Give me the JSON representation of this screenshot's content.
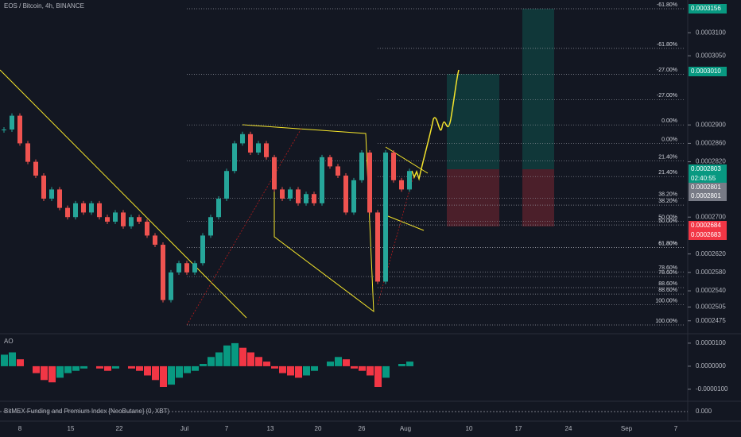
{
  "header": {
    "title": "EOS / Bitcoin, 4h, BINANCE"
  },
  "chart_data": {
    "type": "candlestick",
    "up_color": "#26a69a",
    "down_color": "#ef5350",
    "values": [
      0.000289,
      0.000292,
      0.000286,
      0.000282,
      0.000279,
      0.000274,
      0.000276,
      0.000272,
      0.00027,
      0.000273,
      0.000271,
      0.000273,
      0.00027,
      0.000269,
      0.000271,
      0.000268,
      0.00027,
      0.000269,
      0.000266,
      0.000264,
      0.000252,
      0.000258,
      0.00026,
      0.000258,
      0.00026,
      0.000266,
      0.00027,
      0.000274,
      0.00028,
      0.000286,
      0.000288,
      0.000284,
      0.000286,
      0.000283,
      0.000276,
      0.000274,
      0.000276,
      0.000273,
      0.000275,
      0.000273,
      0.000283,
      0.000281,
      0.000279,
      0.000271,
      0.000278,
      0.000284,
      0.000271,
      0.000256,
      0.000284,
      0.000278,
      0.000276,
      0.00028
    ],
    "ylim": [
      0.0002447,
      0.0003171
    ],
    "yticks": [
      {
        "value": 0.00031,
        "label": "0.0003100"
      },
      {
        "value": 0.000305,
        "label": "0.0003050"
      },
      {
        "value": 0.00029,
        "label": "0.0002900"
      },
      {
        "value": 0.000286,
        "label": "0.0002860"
      },
      {
        "value": 0.000282,
        "label": "0.0002820"
      },
      {
        "value": 0.00027,
        "label": "0.0002700"
      },
      {
        "value": 0.000262,
        "label": "0.0002620"
      },
      {
        "value": 0.000258,
        "label": "0.0002580"
      },
      {
        "value": 0.000254,
        "label": "0.0002540"
      },
      {
        "value": 0.0002505,
        "label": "0.0002505"
      },
      {
        "value": 0.0002475,
        "label": "0.0002475"
      }
    ],
    "x_labels": [
      "8",
      "15",
      "22",
      "Jul",
      "7",
      "13",
      "20",
      "26",
      "Aug",
      "10",
      "17",
      "24",
      "Sep",
      "7"
    ],
    "fib_sets": [
      {
        "levels": [
          {
            "label": "-61.80%",
            "value": 0.0003152
          },
          {
            "label": "-27.00%",
            "value": 0.000301
          },
          {
            "label": "0.00%",
            "value": 0.00029
          },
          {
            "label": "21.40%",
            "value": 0.0002822
          },
          {
            "label": "38.20%",
            "value": 0.0002741
          },
          {
            "label": "50.00%",
            "value": 0.0002691
          },
          {
            "label": "61.80%",
            "value": 0.0002634
          },
          {
            "label": "78.60%",
            "value": 0.0002571
          },
          {
            "label": "88.60%",
            "value": 0.0002533
          },
          {
            "label": "100.00%",
            "value": 0.0002466
          }
        ]
      },
      {
        "levels": [
          {
            "label": "-61.80%",
            "value": 0.0003066
          },
          {
            "label": "-27.00%",
            "value": 0.0002955
          },
          {
            "label": "0.00%",
            "value": 0.000286
          },
          {
            "label": "21.40%",
            "value": 0.0002788
          },
          {
            "label": "38.20%",
            "value": 0.0002726
          },
          {
            "label": "50.00%",
            "value": 0.0002683
          },
          {
            "label": "61.80%",
            "value": 0.0002634
          },
          {
            "label": "78.60%",
            "value": 0.0002581
          },
          {
            "label": "88.60%",
            "value": 0.0002547
          },
          {
            "label": "100.00%",
            "value": 0.000251
          }
        ]
      }
    ],
    "price_tags": [
      {
        "label": "0.0003156",
        "color": "#089981"
      },
      {
        "label": "0.0003010",
        "color": "#089981"
      },
      {
        "label": "0.0002803",
        "color": "#089981"
      },
      {
        "label": "02:40:55",
        "color": "#089981"
      },
      {
        "label": "0.0002801",
        "color": "#787b86"
      },
      {
        "label": "0.0002801",
        "color": "#787b86"
      },
      {
        "label": "0.0002684",
        "color": "#f23645"
      },
      {
        "label": "0.0002683",
        "color": "#f23645"
      }
    ]
  },
  "indicators": {
    "ao": {
      "title": "AO",
      "up_color": "#089981",
      "down_color": "#f23645",
      "values": [
        5e-06,
        6e-06,
        3e-06,
        0,
        -3e-06,
        -6e-06,
        -7e-06,
        -5e-06,
        -3e-06,
        -2e-06,
        -1e-06,
        0,
        -1e-06,
        -2e-06,
        -1e-06,
        0,
        -1e-06,
        -2e-06,
        -4e-06,
        -6e-06,
        -9e-06,
        -8e-06,
        -5e-06,
        -3e-06,
        -2e-06,
        1e-06,
        4e-06,
        6e-06,
        9e-06,
        1e-05,
        8e-06,
        6e-06,
        4e-06,
        2e-06,
        -1e-06,
        -3e-06,
        -4e-06,
        -5e-06,
        -4e-06,
        -2e-06,
        0,
        2e-06,
        4e-06,
        3e-06,
        -1e-06,
        -2e-06,
        -4e-06,
        -9e-06,
        -5e-06,
        0,
        1e-06,
        2e-06
      ],
      "ylim": [
        -1.52e-05,
        1.41e-05
      ],
      "yticks": [
        {
          "value": 1e-05,
          "label": "0.0000100"
        },
        {
          "value": 0,
          "label": "0.0000000"
        },
        {
          "value": -1e-05,
          "label": "-0.0000100"
        }
      ]
    },
    "funding": {
      "title": "BitMEX Funding and Premium Index [NeoButane] (0, XBT)",
      "ticks": [
        {
          "value": 0,
          "label": "0.000"
        }
      ]
    }
  }
}
